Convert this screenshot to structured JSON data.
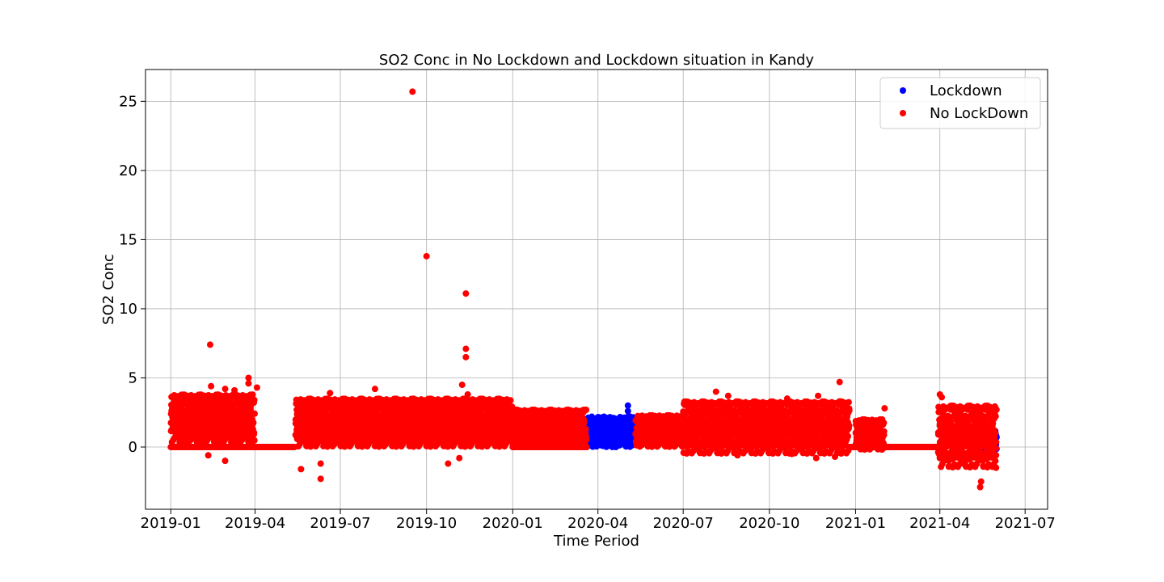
{
  "chart_data": {
    "type": "scatter",
    "title": "SO2 Conc in No Lockdown and Lockdown situation in Kandy",
    "xlabel": "Time Period",
    "ylabel": "SO2 Conc",
    "x_type": "date",
    "xlim": [
      "2018-12-05",
      "2021-07-25"
    ],
    "ylim": [
      -4.5,
      27.3
    ],
    "x_ticks": [
      "2019-01",
      "2019-04",
      "2019-07",
      "2019-10",
      "2020-01",
      "2020-04",
      "2020-07",
      "2020-10",
      "2021-01",
      "2021-04",
      "2021-07"
    ],
    "y_ticks": [
      0,
      5,
      10,
      15,
      20,
      25
    ],
    "grid": true,
    "legend_position": "top-right",
    "series": [
      {
        "name": "Lockdown",
        "color": "#0000ff",
        "ranges": [
          {
            "start": "2020-03-20",
            "end": "2020-05-10",
            "min": 0.0,
            "max": 2.2
          },
          {
            "start": "2021-05-14",
            "end": "2021-05-31",
            "min": -0.4,
            "max": 1.2
          }
        ],
        "points": [
          {
            "x": "2020-05-03",
            "y": 3.0
          },
          {
            "x": "2020-05-03",
            "y": 2.6
          },
          {
            "x": "2020-05-29",
            "y": 2.2
          },
          {
            "x": "2020-04-10",
            "y": 1.9
          },
          {
            "x": "2020-04-22",
            "y": 1.7
          }
        ]
      },
      {
        "name": "No LockDown",
        "color": "#ff0000",
        "ranges": [
          {
            "start": "2019-01-01",
            "end": "2019-03-31",
            "min": 0.3,
            "max": 3.8
          },
          {
            "start": "2019-05-14",
            "end": "2019-12-31",
            "min": 0.0,
            "max": 3.5
          },
          {
            "start": "2020-01-01",
            "end": "2020-03-19",
            "min": 0.0,
            "max": 2.7
          },
          {
            "start": "2020-05-11",
            "end": "2020-06-30",
            "min": 0.0,
            "max": 2.3
          },
          {
            "start": "2020-07-01",
            "end": "2020-12-25",
            "min": -0.5,
            "max": 3.3
          },
          {
            "start": "2021-01-01",
            "end": "2021-01-31",
            "min": -0.2,
            "max": 2.0
          },
          {
            "start": "2021-03-30",
            "end": "2021-05-31",
            "min": -1.5,
            "max": 3.0
          }
        ],
        "baseline": [
          {
            "start": "2019-01-01",
            "end": "2019-05-13",
            "y": 0
          },
          {
            "start": "2020-01-01",
            "end": "2020-03-20",
            "y": 0
          },
          {
            "start": "2020-12-25",
            "end": "2021-03-30",
            "y": 0
          }
        ],
        "points": [
          {
            "x": "2019-09-16",
            "y": 25.7
          },
          {
            "x": "2019-10-01",
            "y": 13.8
          },
          {
            "x": "2019-11-12",
            "y": 11.1
          },
          {
            "x": "2019-11-12",
            "y": 7.1
          },
          {
            "x": "2019-11-12",
            "y": 6.5
          },
          {
            "x": "2019-02-12",
            "y": 7.4
          },
          {
            "x": "2019-02-13",
            "y": 4.4
          },
          {
            "x": "2019-03-25",
            "y": 5.0
          },
          {
            "x": "2019-03-25",
            "y": 4.6
          },
          {
            "x": "2019-04-03",
            "y": 4.3
          },
          {
            "x": "2019-03-10",
            "y": 4.1
          },
          {
            "x": "2019-02-28",
            "y": 4.2
          },
          {
            "x": "2019-08-07",
            "y": 4.2
          },
          {
            "x": "2019-11-08",
            "y": 4.5
          },
          {
            "x": "2019-11-14",
            "y": 3.8
          },
          {
            "x": "2019-06-20",
            "y": 3.9
          },
          {
            "x": "2019-06-10",
            "y": -2.3
          },
          {
            "x": "2019-05-20",
            "y": -1.6
          },
          {
            "x": "2019-06-10",
            "y": -1.2
          },
          {
            "x": "2019-02-28",
            "y": -1.0
          },
          {
            "x": "2019-02-10",
            "y": -0.6
          },
          {
            "x": "2019-10-24",
            "y": -1.2
          },
          {
            "x": "2019-11-05",
            "y": -0.8
          },
          {
            "x": "2020-08-05",
            "y": 4.0
          },
          {
            "x": "2020-08-18",
            "y": 3.7
          },
          {
            "x": "2020-10-20",
            "y": 3.5
          },
          {
            "x": "2020-11-22",
            "y": 3.7
          },
          {
            "x": "2020-12-15",
            "y": 4.7
          },
          {
            "x": "2020-12-15",
            "y": 3.3
          },
          {
            "x": "2021-02-01",
            "y": 2.8
          },
          {
            "x": "2021-04-01",
            "y": 3.8
          },
          {
            "x": "2021-04-03",
            "y": 3.6
          },
          {
            "x": "2021-05-14",
            "y": 2.6
          },
          {
            "x": "2021-05-14",
            "y": -2.9
          },
          {
            "x": "2021-05-15",
            "y": -2.5
          },
          {
            "x": "2021-05-31",
            "y": -1.5
          },
          {
            "x": "2021-04-28",
            "y": -1.3
          },
          {
            "x": "2021-04-01",
            "y": -0.8
          },
          {
            "x": "2020-11-20",
            "y": -0.8
          },
          {
            "x": "2020-12-10",
            "y": -0.7
          },
          {
            "x": "2020-08-28",
            "y": -0.6
          },
          {
            "x": "2020-10-25",
            "y": -0.5
          }
        ]
      }
    ]
  }
}
